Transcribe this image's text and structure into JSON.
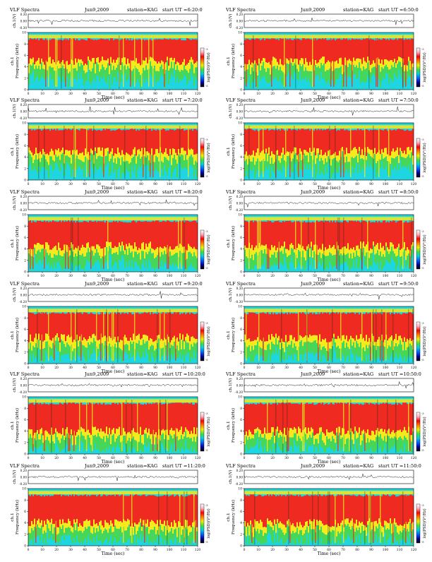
{
  "figure": {
    "panel_title": "VLF Spectra",
    "date": "Jun9,2009",
    "station": "station=KAG",
    "waveform_ylabel": "ch.1(V)",
    "spectrogram_ylabel": "Frequency (kHz)",
    "spectrogram_ylabel_ch": "ch.1",
    "colorbar_label": "log(PSD)(V²/Hz)",
    "xlabel": "Time (sec)"
  },
  "colors": {
    "background_cyan": "#1fd6e0",
    "low_green": "#45d65a",
    "mid_yellow": "#f4ea1e",
    "high_red": "#ef2a20",
    "spike_dark": "#202020",
    "band_top": "#d8e43a",
    "colorbar": [
      "#000000",
      "#0000a0",
      "#0060ff",
      "#00d0e0",
      "#40e040",
      "#f0f000",
      "#ff8000",
      "#ff0000",
      "#ffb0c0",
      "#ffffff"
    ]
  },
  "chart_data": [
    {
      "type": "heatmap",
      "title": "VLF Spectra",
      "start_ut": "start UT =6:20:0",
      "xlabel": "Time (sec)",
      "ylabel": "Frequency (kHz)",
      "xlim": [
        0,
        120
      ],
      "ylim": [
        0,
        10
      ],
      "x_ticks": [
        0,
        10,
        20,
        30,
        40,
        50,
        60,
        70,
        80,
        90,
        100,
        110,
        120
      ],
      "y_ticks": [
        0,
        2,
        4,
        6,
        8,
        10
      ],
      "waveform_ticks": [
        "-0.30",
        "0.00",
        "0.30"
      ],
      "colorbar_ticks": [
        "-3",
        "-5"
      ],
      "red_band_khz": [
        5.0,
        9.0
      ]
    },
    {
      "type": "heatmap",
      "title": "VLF Spectra",
      "start_ut": "start UT =6:50:0",
      "xlabel": "Time (sec)",
      "ylabel": "Frequency (kHz)",
      "xlim": [
        0,
        120
      ],
      "ylim": [
        0,
        10
      ],
      "x_ticks": [
        0,
        10,
        20,
        30,
        40,
        50,
        60,
        70,
        80,
        90,
        100,
        110,
        120
      ],
      "y_ticks": [
        0,
        2,
        4,
        6,
        8,
        10
      ],
      "waveform_ticks": [
        "-0.20",
        "0.00",
        "0.20"
      ],
      "colorbar_ticks": [
        "-3",
        "-5"
      ],
      "red_band_khz": [
        5.0,
        9.0
      ]
    },
    {
      "type": "heatmap",
      "title": "VLF Spectra",
      "start_ut": "start UT =7:20:0",
      "xlabel": "Time (sec)",
      "ylabel": "Frequency (kHz)",
      "xlim": [
        0,
        120
      ],
      "ylim": [
        0,
        10
      ],
      "x_ticks": [
        0,
        10,
        20,
        30,
        40,
        50,
        60,
        70,
        80,
        90,
        100,
        110,
        120
      ],
      "y_ticks": [
        0,
        2,
        4,
        6,
        8,
        10
      ],
      "waveform_ticks": [
        "-0.20",
        "0.00",
        "0.20"
      ],
      "colorbar_ticks": [
        "-3",
        "-5"
      ],
      "red_band_khz": [
        5.0,
        9.0
      ]
    },
    {
      "type": "heatmap",
      "title": "VLF Spectra",
      "start_ut": "start UT =7:50:0",
      "xlabel": "Time (sec)",
      "ylabel": "Frequency (kHz)",
      "xlim": [
        0,
        120
      ],
      "ylim": [
        0,
        10
      ],
      "x_ticks": [
        0,
        10,
        20,
        30,
        40,
        50,
        60,
        70,
        80,
        90,
        100,
        110,
        120
      ],
      "y_ticks": [
        0,
        2,
        4,
        6,
        8,
        10
      ],
      "waveform_ticks": [
        "-0.20",
        "0.00",
        "0.20"
      ],
      "colorbar_ticks": [
        "-3",
        "-5"
      ],
      "red_band_khz": [
        5.0,
        9.0
      ]
    },
    {
      "type": "heatmap",
      "title": "VLF Spectra",
      "start_ut": "start UT =8:20:0",
      "xlabel": "Time (sec)",
      "ylabel": "Frequency (kHz)",
      "xlim": [
        0,
        120
      ],
      "ylim": [
        0,
        10
      ],
      "x_ticks": [
        0,
        10,
        20,
        30,
        40,
        50,
        60,
        70,
        80,
        90,
        100,
        110,
        120
      ],
      "y_ticks": [
        0,
        2,
        4,
        6,
        8,
        10
      ],
      "waveform_ticks": [
        "-0.20",
        "0.00",
        "0.20"
      ],
      "colorbar_ticks": [
        "-3",
        "-5"
      ],
      "red_band_khz": [
        4.5,
        9.0
      ]
    },
    {
      "type": "heatmap",
      "title": "VLF Spectra",
      "start_ut": "start UT =8:50:0",
      "xlabel": "Time (sec)",
      "ylabel": "Frequency (kHz)",
      "xlim": [
        0,
        120
      ],
      "ylim": [
        0,
        10
      ],
      "x_ticks": [
        0,
        10,
        20,
        30,
        40,
        50,
        60,
        70,
        80,
        90,
        100,
        110,
        120
      ],
      "y_ticks": [
        0,
        2,
        4,
        6,
        8,
        10
      ],
      "waveform_ticks": [
        "-0.20",
        "0.00",
        "0.20"
      ],
      "colorbar_ticks": [
        "-3",
        "-5"
      ],
      "red_band_khz": [
        4.5,
        9.0
      ]
    },
    {
      "type": "heatmap",
      "title": "VLF Spectra",
      "start_ut": "start UT =9:20:0",
      "xlabel": "Time (sec)",
      "ylabel": "Frequency (kHz)",
      "xlim": [
        0,
        120
      ],
      "ylim": [
        0,
        10
      ],
      "x_ticks": [
        0,
        10,
        20,
        30,
        40,
        50,
        60,
        70,
        80,
        90,
        100,
        110,
        120
      ],
      "y_ticks": [
        0,
        2,
        4,
        6,
        8,
        10
      ],
      "waveform_ticks": [
        "-0.20",
        "0.00",
        "0.20"
      ],
      "colorbar_ticks": [
        "-3",
        "-5"
      ],
      "red_band_khz": [
        4.5,
        9.0
      ]
    },
    {
      "type": "heatmap",
      "title": "VLF Spectra",
      "start_ut": "start UT =9:50:0",
      "xlabel": "Time (sec)",
      "ylabel": "Frequency (kHz)",
      "xlim": [
        0,
        120
      ],
      "ylim": [
        0,
        10
      ],
      "x_ticks": [
        0,
        10,
        20,
        30,
        40,
        50,
        60,
        70,
        80,
        90,
        100,
        110,
        120
      ],
      "y_ticks": [
        0,
        2,
        4,
        6,
        8,
        10
      ],
      "waveform_ticks": [
        "-0.30",
        "0.00",
        "0.30"
      ],
      "colorbar_ticks": [
        "-3",
        "-5"
      ],
      "red_band_khz": [
        4.5,
        9.0
      ]
    },
    {
      "type": "heatmap",
      "title": "VLF Spectra",
      "start_ut": "start UT =10:20:0",
      "xlabel": "Time (sec)",
      "ylabel": "Frequency (kHz)",
      "xlim": [
        0,
        120
      ],
      "ylim": [
        0,
        10
      ],
      "x_ticks": [
        0,
        10,
        20,
        30,
        40,
        50,
        60,
        70,
        80,
        90,
        100,
        110,
        120
      ],
      "y_ticks": [
        0,
        2,
        4,
        6,
        8,
        10
      ],
      "waveform_ticks": [
        "-0.20",
        "0.00",
        "0.20"
      ],
      "colorbar_ticks": [
        "-3",
        "-5"
      ],
      "red_band_khz": [
        4.0,
        9.0
      ]
    },
    {
      "type": "heatmap",
      "title": "VLF Spectra",
      "start_ut": "start UT =10:50:0",
      "xlabel": "Time (sec)",
      "ylabel": "Frequency (kHz)",
      "xlim": [
        0,
        120
      ],
      "ylim": [
        0,
        10
      ],
      "x_ticks": [
        0,
        10,
        20,
        30,
        40,
        50,
        60,
        70,
        80,
        90,
        100,
        110,
        120
      ],
      "y_ticks": [
        0,
        2,
        4,
        6,
        8,
        10
      ],
      "waveform_ticks": [
        "-0.20",
        "0.00",
        "0.20"
      ],
      "colorbar_ticks": [
        "-3",
        "-5"
      ],
      "red_band_khz": [
        4.0,
        9.0
      ]
    },
    {
      "type": "heatmap",
      "title": "VLF Spectra",
      "start_ut": "start UT =11:20:0",
      "xlabel": "Time (sec)",
      "ylabel": "Frequency (kHz)",
      "xlim": [
        0,
        120
      ],
      "ylim": [
        0,
        10
      ],
      "x_ticks": [
        0,
        10,
        20,
        30,
        40,
        50,
        60,
        70,
        80,
        90,
        100,
        110,
        120
      ],
      "y_ticks": [
        0,
        2,
        4,
        6,
        8,
        10
      ],
      "waveform_ticks": [
        "-0.20",
        "0.00",
        "0.20"
      ],
      "colorbar_ticks": [
        "-3",
        "-5"
      ],
      "red_band_khz": [
        4.0,
        9.0
      ]
    },
    {
      "type": "heatmap",
      "title": "VLF Spectra",
      "start_ut": "start UT =11:50:0",
      "xlabel": "Time (sec)",
      "ylabel": "Frequency (kHz)",
      "xlim": [
        0,
        120
      ],
      "ylim": [
        0,
        10
      ],
      "x_ticks": [
        0,
        10,
        20,
        30,
        40,
        50,
        60,
        70,
        80,
        90,
        100,
        110,
        120
      ],
      "y_ticks": [
        0,
        2,
        4,
        6,
        8,
        10
      ],
      "waveform_ticks": [
        "-0.20",
        "0.00",
        "0.20"
      ],
      "colorbar_ticks": [
        "-3",
        "-5"
      ],
      "red_band_khz": [
        4.0,
        9.0
      ]
    }
  ]
}
